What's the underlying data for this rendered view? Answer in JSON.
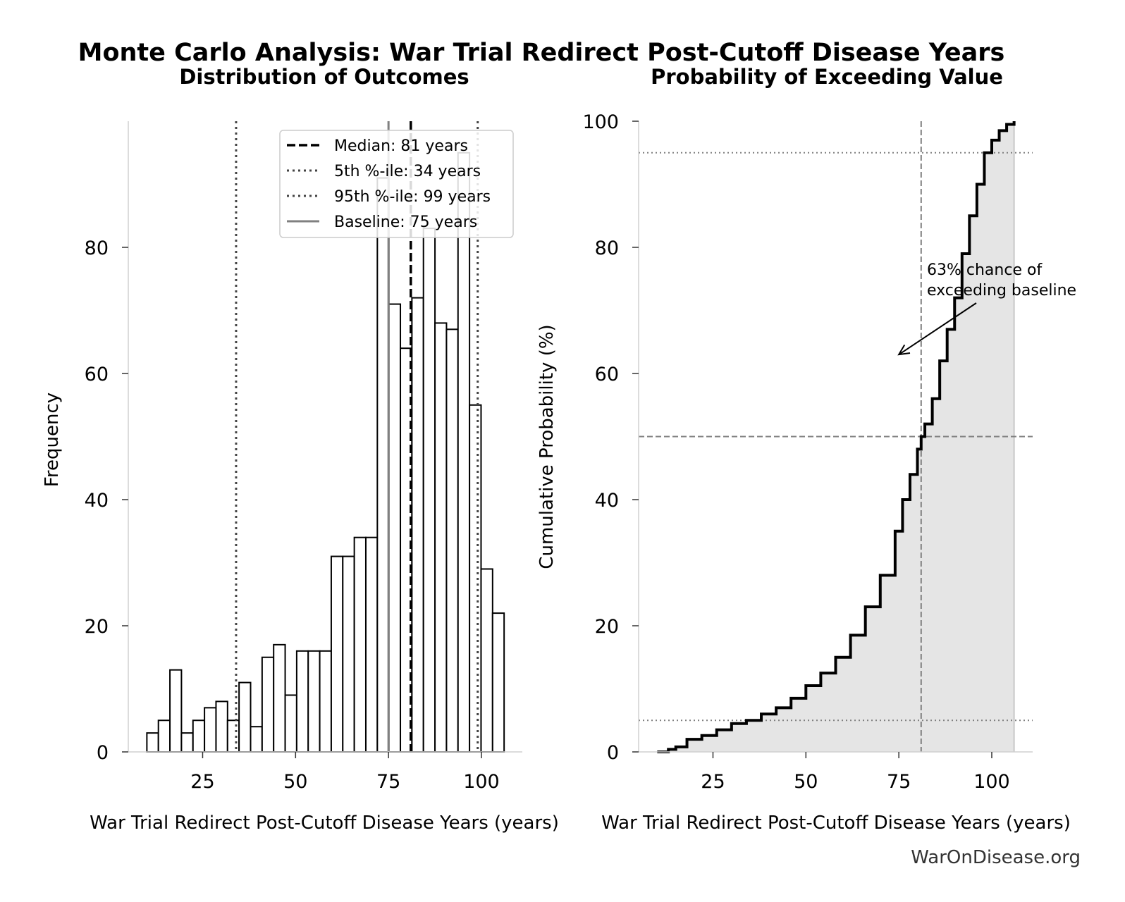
{
  "title": "Monte Carlo Analysis: War Trial Redirect Post-Cutoff Disease Years",
  "footer": "WarOnDisease.org",
  "colors": {
    "bar_edge": "#000000",
    "bar_fill": "#ffffff",
    "median_line": "#000000",
    "percentile_line": "#444444",
    "baseline_line": "#808080",
    "cdf_line": "#000000",
    "cdf_fill": "#e5e5e5",
    "reference_line": "#808080"
  },
  "chart_data": [
    {
      "type": "bar",
      "title": "Distribution of Outcomes",
      "xlabel": "War Trial Redirect Post-Cutoff Disease Years (years)",
      "ylabel": "Frequency",
      "xlim": [
        5,
        111
      ],
      "ylim": [
        0,
        100
      ],
      "xticks": [
        25,
        50,
        75,
        100
      ],
      "yticks": [
        0,
        20,
        40,
        60,
        80
      ],
      "bin_width": 3.1,
      "bin_starts": [
        10.0,
        13.1,
        16.2,
        19.3,
        22.4,
        25.5,
        28.6,
        31.7,
        34.8,
        37.9,
        41.0,
        44.1,
        47.2,
        50.3,
        53.4,
        56.5,
        59.6,
        62.7,
        65.8,
        68.9,
        72.0,
        75.1,
        78.2,
        81.3,
        84.4,
        87.5,
        90.6,
        93.7,
        96.8,
        99.9,
        103.0
      ],
      "values": [
        3,
        5,
        13,
        3,
        5,
        7,
        8,
        5,
        11,
        4,
        15,
        17,
        9,
        16,
        16,
        16,
        31,
        31,
        34,
        34,
        91,
        71,
        64,
        72,
        83,
        68,
        67,
        95,
        55,
        29,
        22
      ],
      "grid": false,
      "legend_position": "upper-right",
      "reference_lines": [
        {
          "label": "Median: 81 years",
          "x": 81,
          "style": "dashed"
        },
        {
          "label": "5th %-ile: 34 years",
          "x": 34,
          "style": "dotted"
        },
        {
          "label": "95th %-ile: 99 years",
          "x": 99,
          "style": "dotted"
        },
        {
          "label": "Baseline: 75 years",
          "x": 75,
          "style": "solid"
        }
      ]
    },
    {
      "type": "area",
      "title": "Probability of Exceeding Value",
      "xlabel": "War Trial Redirect Post-Cutoff Disease Years (years)",
      "ylabel": "Cumulative Probability (%)",
      "xlim": [
        5,
        111
      ],
      "ylim": [
        0,
        100
      ],
      "xticks": [
        25,
        50,
        75,
        100
      ],
      "yticks": [
        0,
        20,
        40,
        60,
        80,
        100
      ],
      "grid": false,
      "x": [
        10,
        13,
        15,
        18,
        22,
        26,
        30,
        34,
        38,
        42,
        46,
        50,
        54,
        58,
        62,
        66,
        70,
        74,
        76,
        78,
        80,
        81,
        82,
        84,
        86,
        88,
        90,
        92,
        94,
        96,
        98,
        100,
        102,
        104,
        106
      ],
      "y": [
        0,
        0.4,
        0.8,
        2,
        2.6,
        3.5,
        4.5,
        5,
        6,
        7,
        8.5,
        10.5,
        12.5,
        15,
        18.5,
        23,
        28,
        35,
        40,
        44,
        48,
        50,
        52,
        56,
        62,
        67,
        72,
        79,
        85,
        90,
        95,
        97,
        98.5,
        99.5,
        100
      ],
      "reference_lines": [
        {
          "axis": "x",
          "value": 81,
          "style": "dashed"
        },
        {
          "axis": "y",
          "value": 50,
          "style": "dashed"
        },
        {
          "axis": "y",
          "value": 5,
          "style": "dotted"
        },
        {
          "axis": "y",
          "value": 95,
          "style": "dotted"
        }
      ],
      "annotation": {
        "text_lines": [
          "63% chance of",
          "exceeding baseline"
        ],
        "arrow_target": [
          75,
          63
        ]
      }
    }
  ]
}
